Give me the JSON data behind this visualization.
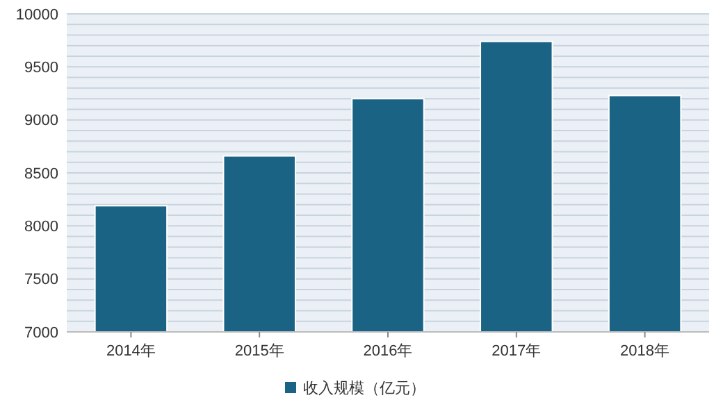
{
  "chart_data": {
    "type": "bar",
    "categories": [
      "2014年",
      "2015年",
      "2016年",
      "2017年",
      "2018年"
    ],
    "series": [
      {
        "name": "收入规模（亿元）",
        "color": "#1b6384",
        "values": [
          8190,
          8660,
          9200,
          9740,
          9230
        ]
      }
    ],
    "ylim": [
      7000,
      10000
    ],
    "yticks": [
      7000,
      {
        "value": 7100,
        "label": null
      },
      {
        "value": 7200,
        "label": null
      },
      {
        "value": 7300,
        "label": null
      },
      {
        "value": 7400,
        "label": null
      },
      7500,
      {
        "value": 7600,
        "label": null
      },
      {
        "value": 7700,
        "label": null
      },
      {
        "value": 7800,
        "label": null
      },
      {
        "value": 7900,
        "label": null
      },
      8000,
      {
        "value": 8100,
        "label": null
      },
      {
        "value": 8200,
        "label": null
      },
      {
        "value": 8300,
        "label": null
      },
      {
        "value": 8400,
        "label": null
      },
      8500,
      {
        "value": 8600,
        "label": null
      },
      {
        "value": 8700,
        "label": null
      },
      {
        "value": 8800,
        "label": null
      },
      {
        "value": 8900,
        "label": null
      },
      9000,
      {
        "value": 9100,
        "label": null
      },
      {
        "value": 9200,
        "label": null
      },
      {
        "value": 9300,
        "label": null
      },
      {
        "value": 9400,
        "label": null
      },
      9500,
      {
        "value": 9600,
        "label": null
      },
      {
        "value": 9700,
        "label": null
      },
      {
        "value": 9800,
        "label": null
      },
      {
        "value": 9900,
        "label": null
      },
      10000
    ],
    "grid": "y",
    "legend": "bottom"
  }
}
